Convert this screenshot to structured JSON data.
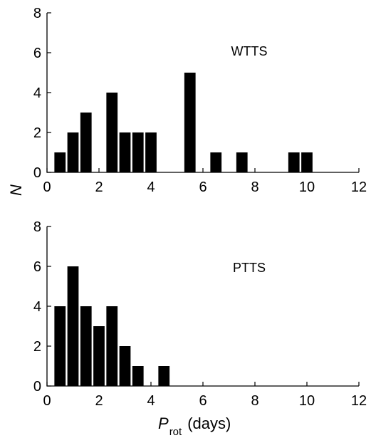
{
  "chart_data": [
    {
      "type": "bar",
      "label": "WTTS",
      "xlim": [
        0,
        12
      ],
      "ylim": [
        0,
        8
      ],
      "xticks": [
        "0",
        "2",
        "4",
        "6",
        "8",
        "10",
        "12"
      ],
      "yticks": [
        "0",
        "2",
        "4",
        "6",
        "8"
      ],
      "bin_width": 0.5,
      "x": [
        0.5,
        1.0,
        1.5,
        2.5,
        3.0,
        3.5,
        4.0,
        5.5,
        6.5,
        7.5,
        9.5,
        10.0
      ],
      "values": [
        1,
        2,
        3,
        4,
        2,
        2,
        2,
        5,
        1,
        1,
        1,
        1
      ],
      "color": "#000000"
    },
    {
      "type": "bar",
      "label": "PTTS",
      "xlim": [
        0,
        12
      ],
      "ylim": [
        0,
        8
      ],
      "xticks": [
        "0",
        "2",
        "4",
        "6",
        "8",
        "10",
        "12"
      ],
      "yticks": [
        "0",
        "2",
        "4",
        "6",
        "8"
      ],
      "bin_width": 0.5,
      "x": [
        0.5,
        1.0,
        1.5,
        2.0,
        2.5,
        3.0,
        3.5,
        4.5
      ],
      "values": [
        4,
        6,
        4,
        3,
        4,
        2,
        1,
        1
      ],
      "color": "#000000"
    }
  ],
  "ylabel": "N",
  "xlabel_main": "P",
  "xlabel_sub": "rot",
  "xlabel_unit": "(days)"
}
